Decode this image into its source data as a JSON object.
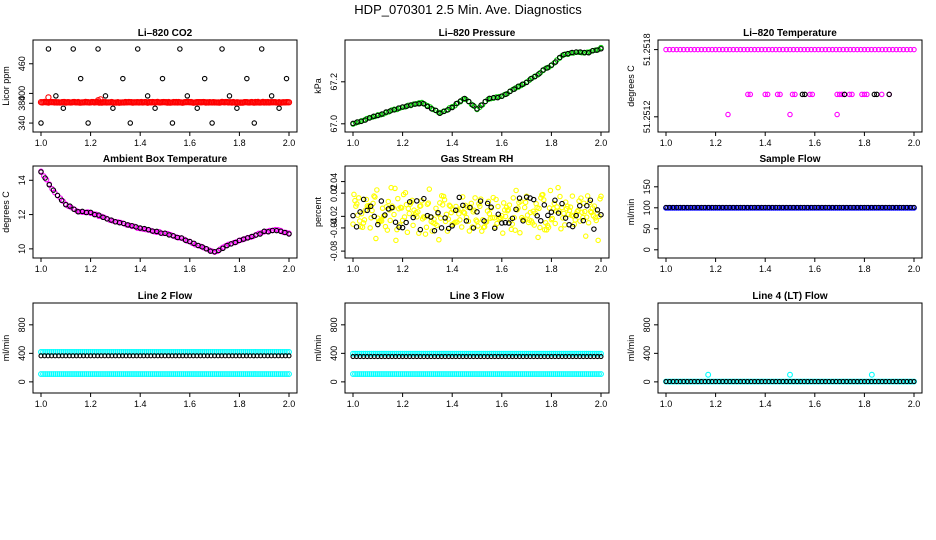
{
  "figure_title": "HDP_070301  2.5 Min. Ave. Diagnostics",
  "chart_data": [
    {
      "id": "co2",
      "type": "scatter",
      "title": "Li–820 CO2",
      "ylabel": "Licor ppm",
      "xlim": [
        1.0,
        2.0
      ],
      "ylim": [
        330,
        500
      ],
      "x_ticks": [
        "1.0",
        "1.2",
        "1.4",
        "1.6",
        "1.8",
        "2.0"
      ],
      "y_ticks": [
        340,
        380,
        400,
        460
      ],
      "y_tick_labels": [
        "340",
        "380",
        "400",
        "460"
      ],
      "series": [
        {
          "color": "#000000",
          "kind": "sparse_levels",
          "levels": [
            340,
            370,
            395,
            430,
            490
          ],
          "x": [
            1.0,
            1.03,
            1.06,
            1.09,
            1.13,
            1.16,
            1.19,
            1.23,
            1.26,
            1.29,
            1.33,
            1.36,
            1.39,
            1.43,
            1.46,
            1.49,
            1.53,
            1.56,
            1.59,
            1.63,
            1.66,
            1.69,
            1.73,
            1.76,
            1.79,
            1.83,
            1.86,
            1.89,
            1.93,
            1.96,
            1.99
          ],
          "level_index": [
            0,
            4,
            2,
            1,
            4,
            3,
            0,
            4,
            2,
            1,
            3,
            0,
            4,
            2,
            1,
            3,
            0,
            4,
            2,
            1,
            3,
            0,
            4,
            2,
            1,
            3,
            0,
            4,
            2,
            1,
            3
          ]
        },
        {
          "color": "#ff0000",
          "kind": "band",
          "y": 382,
          "noise": 1.5,
          "bumps": [
            {
              "x": 1.03,
              "y": 392
            },
            {
              "x": 1.23,
              "y": 386
            },
            {
              "x": 1.24,
              "y": 388
            }
          ]
        }
      ]
    },
    {
      "id": "pressure",
      "type": "scatter",
      "title": "Li–820 Pressure",
      "ylabel": "kPa",
      "xlim": [
        1.0,
        2.0
      ],
      "ylim": [
        66.98,
        67.38
      ],
      "x_ticks": [
        "1.0",
        "1.2",
        "1.4",
        "1.6",
        "1.8",
        "2.0"
      ],
      "y_ticks": [
        67.0,
        67.2
      ],
      "y_tick_labels": [
        "67.0",
        "67.2"
      ],
      "series": [
        {
          "color": "#00cc00",
          "kind": "curve",
          "knots_x": [
            1.0,
            1.1,
            1.2,
            1.28,
            1.35,
            1.4,
            1.45,
            1.5,
            1.55,
            1.6,
            1.7,
            1.8,
            1.85,
            1.9,
            1.95,
            2.0
          ],
          "knots_y": [
            67.0,
            67.04,
            67.08,
            67.1,
            67.05,
            67.08,
            67.12,
            67.07,
            67.12,
            67.13,
            67.2,
            67.28,
            67.33,
            67.34,
            67.34,
            67.36
          ]
        },
        {
          "color": "#000000",
          "kind": "curve_sparse"
        }
      ]
    },
    {
      "id": "temperature",
      "type": "scatter",
      "title": "Li–820 Temperature",
      "ylabel": "degrees C",
      "xlim": [
        1.0,
        2.0
      ],
      "ylim": [
        51.2511,
        51.25185
      ],
      "x_ticks": [
        "1.0",
        "1.2",
        "1.4",
        "1.6",
        "1.8",
        "2.0"
      ],
      "y_ticks": [
        51.2512,
        51.2518
      ],
      "y_tick_labels": [
        "51.2512",
        "51.2518"
      ],
      "series": [
        {
          "color": "#ff00ff",
          "kind": "levels",
          "levels": [
            51.2518,
            51.2514,
            51.25122
          ],
          "x_top": "all",
          "x_mid": [
            1.33,
            1.34,
            1.4,
            1.41,
            1.45,
            1.46,
            1.51,
            1.52,
            1.58,
            1.59,
            1.69,
            1.7,
            1.71,
            1.72,
            1.74,
            1.75,
            1.79,
            1.8,
            1.81,
            1.87,
            1.9
          ],
          "x_low": [
            1.25,
            1.5,
            1.69
          ]
        },
        {
          "color": "#000000",
          "kind": "levels",
          "x_mid": [
            1.55,
            1.56,
            1.72,
            1.84,
            1.85,
            1.9
          ]
        }
      ]
    },
    {
      "id": "ambient",
      "type": "scatter",
      "title": "Ambient Box Temperature",
      "ylabel": "degrees C",
      "xlim": [
        1.0,
        2.0
      ],
      "ylim": [
        9.7,
        14.6
      ],
      "x_ticks": [
        "1.0",
        "1.2",
        "1.4",
        "1.6",
        "1.8",
        "2.0"
      ],
      "y_ticks": [
        10,
        12,
        14
      ],
      "y_tick_labels": [
        "10",
        "12",
        "14"
      ],
      "series": [
        {
          "color": "#ff00ff",
          "kind": "curve",
          "knots_x": [
            1.0,
            1.05,
            1.1,
            1.15,
            1.2,
            1.3,
            1.4,
            1.5,
            1.55,
            1.6,
            1.65,
            1.7,
            1.75,
            1.8,
            1.85,
            1.9,
            1.95,
            2.0
          ],
          "knots_y": [
            14.5,
            13.4,
            12.6,
            12.2,
            12.1,
            11.6,
            11.2,
            10.9,
            10.7,
            10.4,
            10.1,
            9.8,
            10.2,
            10.5,
            10.7,
            11.0,
            11.1,
            10.9
          ]
        },
        {
          "color": "#000000",
          "kind": "curve_sparse"
        }
      ]
    },
    {
      "id": "rh",
      "type": "scatter",
      "title": "Gas Stream RH",
      "ylabel": "percent",
      "xlim": [
        1.0,
        2.0
      ],
      "ylim": [
        -0.085,
        0.06
      ],
      "x_ticks": [
        "1.0",
        "1.2",
        "1.4",
        "1.6",
        "1.8",
        "2.0"
      ],
      "y_ticks": [
        -0.08,
        -0.04,
        -0.02,
        0.02,
        0.04
      ],
      "y_tick_labels": [
        "-0.08",
        "-0.04",
        "-0.02",
        "0.02",
        "0.04"
      ],
      "series": [
        {
          "color": "#ffff00",
          "kind": "noise",
          "center": -0.015,
          "spread": 0.035
        },
        {
          "color": "#000000",
          "kind": "noise_sparse",
          "center": -0.015,
          "spread": 0.03
        }
      ]
    },
    {
      "id": "sample_flow",
      "type": "scatter",
      "title": "Sample Flow",
      "ylabel": "ml/min",
      "xlim": [
        1.0,
        2.0
      ],
      "ylim": [
        -10,
        190
      ],
      "x_ticks": [
        "1.0",
        "1.2",
        "1.4",
        "1.6",
        "1.8",
        "2.0"
      ],
      "y_ticks": [
        0,
        50,
        100,
        150
      ],
      "y_tick_labels": [
        "0",
        "50",
        "100",
        "150"
      ],
      "series": [
        {
          "color": "#0000ff",
          "kind": "flat",
          "y": 100
        },
        {
          "color": "#000000",
          "kind": "flat_sparse",
          "y": 101
        }
      ]
    },
    {
      "id": "line2",
      "type": "scatter",
      "title": "Line 2 Flow",
      "ylabel": "ml/min",
      "xlim": [
        1.0,
        2.0
      ],
      "ylim": [
        -100,
        1050
      ],
      "x_ticks": [
        "1.0",
        "1.2",
        "1.4",
        "1.6",
        "1.8",
        "2.0"
      ],
      "y_ticks": [
        0,
        400,
        800
      ],
      "y_tick_labels": [
        "0",
        "400",
        "800"
      ],
      "series": [
        {
          "color": "#00ffff",
          "kind": "flat",
          "y": 420
        },
        {
          "color": "#00ffff",
          "kind": "flat",
          "y": 110
        },
        {
          "color": "#000000",
          "kind": "flat_sparse",
          "y": 365
        }
      ]
    },
    {
      "id": "line3",
      "type": "scatter",
      "title": "Line 3 Flow",
      "ylabel": "ml/min",
      "xlim": [
        1.0,
        2.0
      ],
      "ylim": [
        -100,
        1050
      ],
      "x_ticks": [
        "1.0",
        "1.2",
        "1.4",
        "1.6",
        "1.8",
        "2.0"
      ],
      "y_ticks": [
        0,
        400,
        800
      ],
      "y_tick_labels": [
        "0",
        "400",
        "800"
      ],
      "series": [
        {
          "color": "#00ffff",
          "kind": "flat",
          "y": 395
        },
        {
          "color": "#00ffff",
          "kind": "flat",
          "y": 110
        },
        {
          "color": "#000000",
          "kind": "flat_sparse",
          "y": 355
        }
      ]
    },
    {
      "id": "line4",
      "type": "scatter",
      "title": "Line 4 (LT) Flow",
      "ylabel": "ml/min",
      "xlim": [
        1.0,
        2.0
      ],
      "ylim": [
        -100,
        1050
      ],
      "x_ticks": [
        "1.0",
        "1.2",
        "1.4",
        "1.6",
        "1.8",
        "2.0"
      ],
      "y_ticks": [
        0,
        400,
        800
      ],
      "y_tick_labels": [
        "0",
        "400",
        "800"
      ],
      "series": [
        {
          "color": "#00ffff",
          "kind": "flat",
          "y": 5,
          "spikes": [
            {
              "x": 1.17,
              "y": 100
            },
            {
              "x": 1.5,
              "y": 100
            },
            {
              "x": 1.83,
              "y": 100
            }
          ]
        },
        {
          "color": "#000000",
          "kind": "flat_sparse",
          "y": 5
        }
      ]
    }
  ]
}
